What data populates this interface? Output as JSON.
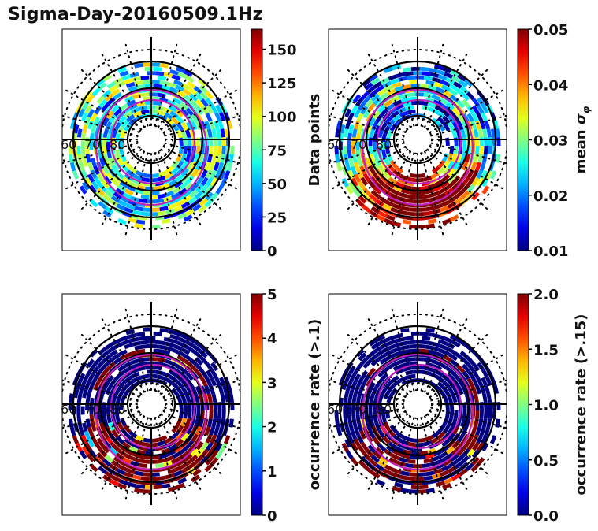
{
  "figure": {
    "title": "Sigma-Day-20160509.1Hz"
  },
  "chart_data": [
    {
      "type": "heatmap",
      "projection": "polar (magnetic latitude / MLT)",
      "title": "",
      "colorbar_label": "Data points",
      "colormap": "jet",
      "clim": [
        0,
        165
      ],
      "colorbar_ticks": [
        "0",
        "25",
        "50",
        "75",
        "100",
        "125",
        "150"
      ],
      "colorbar_tick_values": [
        0,
        25,
        50,
        75,
        100,
        125,
        150
      ],
      "latitude_labels": [
        "60",
        "70",
        "80"
      ],
      "dominant_level": 0.35,
      "pattern": "mixed"
    },
    {
      "type": "heatmap",
      "projection": "polar (magnetic latitude / MLT)",
      "title": "",
      "colorbar_label": "mean σ_φ",
      "colorbar_label_main": "mean ",
      "colorbar_label_symbol": "σ",
      "colorbar_label_sub": "φ",
      "colormap": "jet",
      "clim": [
        0.01,
        0.05
      ],
      "colorbar_ticks": [
        "0.01",
        "0.02",
        "0.03",
        "0.04",
        "0.05"
      ],
      "colorbar_tick_values": [
        0.01,
        0.02,
        0.03,
        0.04,
        0.05
      ],
      "latitude_labels": [
        "60",
        "70",
        "80"
      ],
      "dominant_level": 0.6,
      "pattern": "night-high"
    },
    {
      "type": "heatmap",
      "projection": "polar (magnetic latitude / MLT)",
      "title": "",
      "colorbar_label": "occurrence rate (>.1)",
      "colormap": "jet",
      "clim": [
        0,
        5
      ],
      "colorbar_ticks": [
        "0",
        "1",
        "2",
        "3",
        "4",
        "5"
      ],
      "colorbar_tick_values": [
        0,
        1,
        2,
        3,
        4,
        5
      ],
      "latitude_labels": [
        "60",
        "70",
        "80"
      ],
      "dominant_level": 0.05,
      "pattern": "occurrence"
    },
    {
      "type": "heatmap",
      "projection": "polar (magnetic latitude / MLT)",
      "title": "",
      "colorbar_label": "occurrence rate (>.15)",
      "colormap": "jet",
      "clim": [
        0,
        2.0
      ],
      "colorbar_ticks": [
        "0.0",
        "0.5",
        "1.0",
        "1.5",
        "2.0"
      ],
      "colorbar_tick_values": [
        0,
        0.5,
        1.0,
        1.5,
        2.0
      ],
      "latitude_labels": [
        "60",
        "70",
        "80"
      ],
      "dominant_level": 0.03,
      "pattern": "occurrence-sparse"
    }
  ]
}
